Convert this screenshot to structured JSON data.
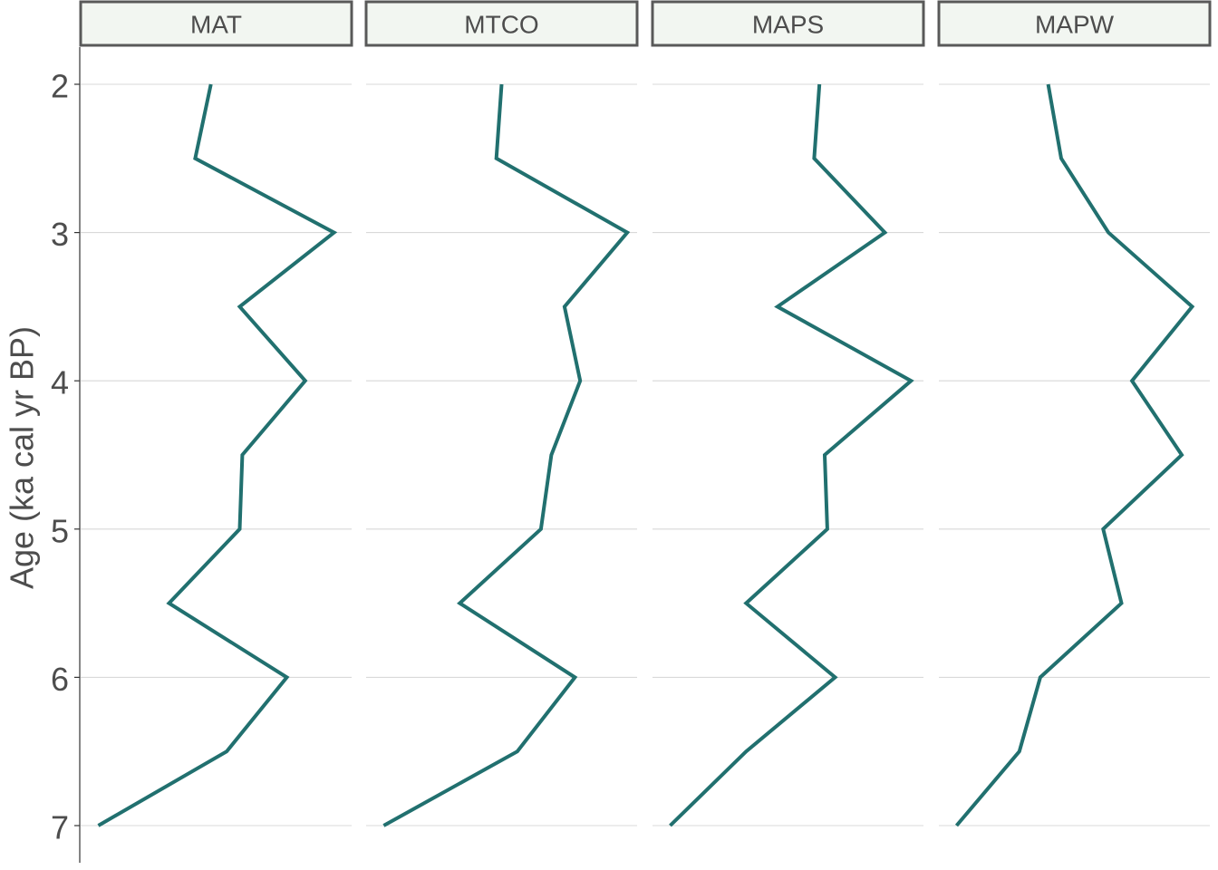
{
  "chart_data": {
    "type": "line",
    "orientation": "vertical-profile",
    "ylabel": "Age (ka cal yr BP)",
    "yticks": [
      2,
      3,
      4,
      5,
      6,
      7
    ],
    "ylim": [
      7,
      2
    ],
    "y_reversed": true,
    "x_axis_shown": false,
    "grid": "horizontal",
    "line_color": "#21706f",
    "strip_fill": "#f2f6f1",
    "ages": [
      2.0,
      2.5,
      3.0,
      3.5,
      4.0,
      4.5,
      5.0,
      5.5,
      6.0,
      6.5,
      7.0
    ],
    "panels": [
      {
        "name": "MAT",
        "values": [
          0.48,
          0.42,
          0.95,
          0.59,
          0.84,
          0.6,
          0.59,
          0.32,
          0.77,
          0.54,
          0.05
        ]
      },
      {
        "name": "MTCO",
        "values": [
          0.5,
          0.48,
          0.98,
          0.74,
          0.8,
          0.69,
          0.65,
          0.34,
          0.78,
          0.56,
          0.05
        ]
      },
      {
        "name": "MAPS",
        "values": [
          0.62,
          0.6,
          0.87,
          0.46,
          0.97,
          0.64,
          0.65,
          0.34,
          0.68,
          0.34,
          0.05
        ]
      },
      {
        "name": "MAPW",
        "values": [
          0.4,
          0.45,
          0.63,
          0.95,
          0.72,
          0.91,
          0.61,
          0.68,
          0.37,
          0.29,
          0.05
        ]
      }
    ]
  }
}
